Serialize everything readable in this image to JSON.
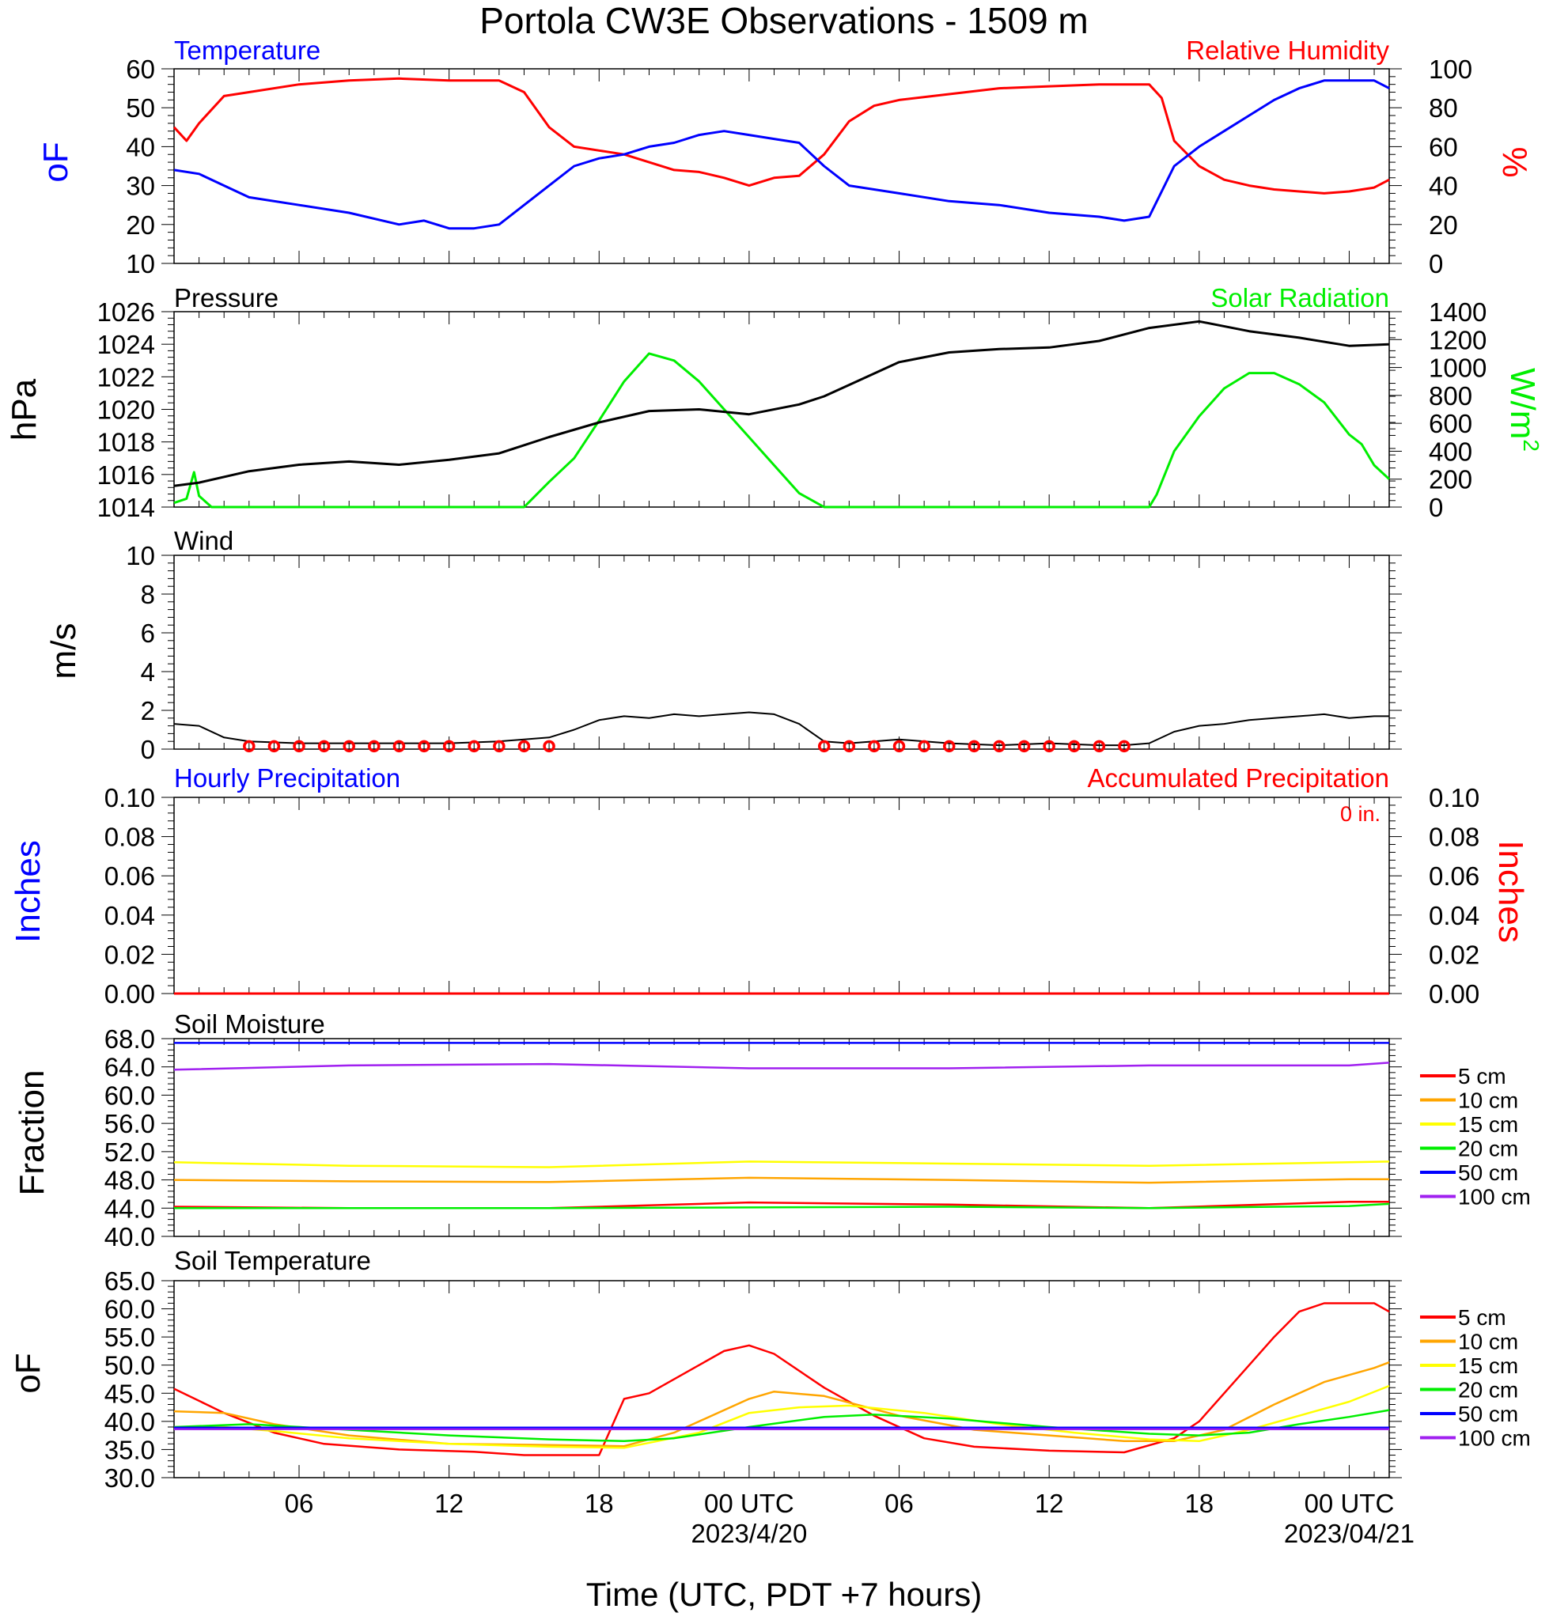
{
  "page_title": "Portola CW3E Observations - 1509 m",
  "x_axis": {
    "title": "Time (UTC, PDT +7 hours)",
    "tick_labels": [
      "06",
      "12",
      "18",
      "00 UTC",
      "06",
      "12",
      "18",
      "00 UTC"
    ],
    "tick_hours": [
      6,
      12,
      18,
      24,
      30,
      36,
      42,
      48
    ],
    "date_labels": [
      {
        "hour": 24,
        "text": "2023/4/20"
      },
      {
        "hour": 48,
        "text": "2023/04/21"
      }
    ],
    "range_hours": [
      1,
      49.6
    ]
  },
  "colors": {
    "temperature": "#0000ff",
    "humidity": "#ff0000",
    "pressure": "#000000",
    "solar": "#00ee00",
    "wind": "#000000",
    "wind_barb": "#ff0000",
    "precip_hourly": "#0000ff",
    "precip_accum": "#ff0000",
    "depth_5cm": "#ff0000",
    "depth_10cm": "#ffa500",
    "depth_15cm": "#ffff00",
    "depth_20cm": "#00ee00",
    "depth_50cm": "#0000ff",
    "depth_100cm": "#a020f0"
  },
  "panels": {
    "temp_rh": {
      "left_title": "Temperature",
      "right_title": "Relative Humidity",
      "left_unit": "oF",
      "right_unit": "%",
      "left_ticks": [
        "10",
        "20",
        "30",
        "40",
        "50",
        "60"
      ],
      "right_ticks": [
        "0",
        "20",
        "40",
        "60",
        "80",
        "100"
      ]
    },
    "pressure_solar": {
      "left_title": "Pressure",
      "right_title": "Solar Radiation",
      "left_unit": "hPa",
      "right_unit": "W/m",
      "right_unit_sup": "2",
      "left_ticks": [
        "1014",
        "1016",
        "1018",
        "1020",
        "1022",
        "1024",
        "1026"
      ],
      "right_ticks": [
        "0",
        "200",
        "400",
        "600",
        "800",
        "1000",
        "1200",
        "1400"
      ]
    },
    "wind": {
      "title": "Wind",
      "unit": "m/s",
      "ticks": [
        "0",
        "2",
        "4",
        "6",
        "8",
        "10"
      ]
    },
    "precip": {
      "left_title": "Hourly Precipitation",
      "right_title": "Accumulated Precipitation",
      "accum_label": "0 in.",
      "left_unit": "Inches",
      "right_unit": "Inches",
      "left_ticks": [
        "0.00",
        "0.02",
        "0.04",
        "0.06",
        "0.08",
        "0.10"
      ],
      "right_ticks": [
        "0.00",
        "0.02",
        "0.04",
        "0.06",
        "0.08",
        "0.10"
      ]
    },
    "soil_moisture": {
      "title": "Soil Moisture",
      "unit": "Fraction",
      "ticks": [
        "40.0",
        "44.0",
        "48.0",
        "52.0",
        "56.0",
        "60.0",
        "64.0",
        "68.0"
      ],
      "legend": [
        "5 cm",
        "10 cm",
        "15 cm",
        "20 cm",
        "50 cm",
        "100 cm"
      ]
    },
    "soil_temp": {
      "title": "Soil Temperature",
      "unit": "oF",
      "ticks": [
        "30.0",
        "35.0",
        "40.0",
        "45.0",
        "50.0",
        "55.0",
        "60.0",
        "65.0"
      ],
      "legend": [
        "5 cm",
        "10 cm",
        "15 cm",
        "20 cm",
        "50 cm",
        "100 cm"
      ]
    }
  },
  "chart_data": [
    {
      "type": "line",
      "x_units": "hours since 2023-04-19 00 UTC",
      "left_ylim": [
        10,
        60
      ],
      "right_ylim": [
        0,
        100
      ],
      "series": [
        {
          "name": "Temperature",
          "axis": "left",
          "x": [
            1,
            2,
            3,
            4,
            6,
            8,
            10,
            11,
            12,
            13,
            14,
            15,
            16,
            17,
            18,
            19,
            20,
            21,
            22,
            23,
            24,
            25,
            26,
            27,
            28,
            29,
            30,
            32,
            34,
            36,
            38,
            39,
            40,
            41,
            42,
            43,
            44,
            45,
            46,
            47,
            48,
            49,
            49.6
          ],
          "y": [
            34,
            33,
            30,
            27,
            25,
            23,
            20,
            21,
            19,
            19,
            20,
            25,
            30,
            35,
            37,
            38,
            40,
            41,
            43,
            44,
            43,
            42,
            41,
            35,
            30,
            29,
            28,
            26,
            25,
            23,
            22,
            21,
            22,
            35,
            40,
            44,
            48,
            52,
            55,
            57,
            57,
            57,
            55
          ]
        },
        {
          "name": "Relative Humidity",
          "axis": "right",
          "x": [
            1,
            1.5,
            2,
            3,
            4,
            6,
            8,
            10,
            12,
            14,
            15,
            16,
            17,
            18,
            19,
            20,
            21,
            22,
            23,
            24,
            25,
            26,
            27,
            28,
            29,
            30,
            32,
            34,
            36,
            38,
            39,
            40,
            40.5,
            41,
            42,
            43,
            44,
            45,
            46,
            47,
            48,
            49,
            49.6
          ],
          "y": [
            70,
            63,
            72,
            86,
            88,
            92,
            94,
            95,
            94,
            94,
            88,
            70,
            60,
            58,
            56,
            52,
            48,
            47,
            44,
            40,
            44,
            45,
            56,
            73,
            81,
            84,
            87,
            90,
            91,
            92,
            92,
            92,
            85,
            63,
            50,
            43,
            40,
            38,
            37,
            36,
            37,
            39,
            43
          ]
        }
      ]
    },
    {
      "type": "line",
      "left_ylim": [
        1014,
        1026
      ],
      "right_ylim": [
        0,
        1400
      ],
      "series": [
        {
          "name": "Pressure",
          "axis": "left",
          "x": [
            1,
            2,
            4,
            6,
            8,
            10,
            12,
            14,
            15,
            16,
            18,
            20,
            22,
            24,
            26,
            27,
            28,
            30,
            32,
            34,
            36,
            38,
            40,
            42,
            44,
            46,
            48,
            49.6
          ],
          "y": [
            1015.3,
            1015.5,
            1016.2,
            1016.6,
            1016.8,
            1016.6,
            1016.9,
            1017.3,
            1017.8,
            1018.3,
            1019.2,
            1019.9,
            1020.0,
            1019.7,
            1020.3,
            1020.8,
            1021.5,
            1022.9,
            1023.5,
            1023.7,
            1023.8,
            1024.2,
            1025.0,
            1025.4,
            1024.8,
            1024.4,
            1023.9,
            1024.0
          ]
        },
        {
          "name": "Solar Radiation",
          "axis": "right",
          "x": [
            1,
            1.5,
            1.8,
            2,
            2.5,
            3,
            15,
            16,
            17,
            18,
            19,
            20,
            21,
            22,
            23,
            24,
            25,
            26,
            27,
            28,
            29,
            30,
            36,
            40,
            40.3,
            41,
            42,
            43,
            44,
            45,
            46,
            47,
            48,
            48.5,
            49,
            49.6
          ],
          "y": [
            30,
            60,
            250,
            80,
            0,
            0,
            0,
            180,
            350,
            620,
            900,
            1100,
            1050,
            900,
            700,
            500,
            300,
            100,
            0,
            0,
            0,
            0,
            0,
            0,
            90,
            400,
            650,
            850,
            960,
            960,
            880,
            750,
            520,
            450,
            300,
            200
          ]
        }
      ]
    },
    {
      "type": "line",
      "ylim": [
        0,
        10
      ],
      "series": [
        {
          "name": "Wind",
          "x": [
            1,
            2,
            3,
            4,
            6,
            8,
            10,
            12,
            14,
            15,
            16,
            17,
            18,
            19,
            20,
            21,
            22,
            23,
            24,
            25,
            26,
            27,
            28,
            29,
            30,
            32,
            34,
            36,
            38,
            39,
            40,
            41,
            42,
            43,
            44,
            45,
            46,
            47,
            48,
            49,
            49.6
          ],
          "y": [
            1.3,
            1.2,
            0.6,
            0.4,
            0.3,
            0.3,
            0.3,
            0.3,
            0.4,
            0.5,
            0.6,
            1.0,
            1.5,
            1.7,
            1.6,
            1.8,
            1.7,
            1.8,
            1.9,
            1.8,
            1.3,
            0.4,
            0.3,
            0.4,
            0.5,
            0.3,
            0.2,
            0.3,
            0.2,
            0.2,
            0.3,
            0.9,
            1.2,
            1.3,
            1.5,
            1.6,
            1.7,
            1.8,
            1.6,
            1.7,
            1.7
          ]
        }
      ],
      "calm_hours": [
        4,
        5,
        6,
        7,
        8,
        9,
        10,
        11,
        12,
        13,
        14,
        15,
        16,
        27,
        28,
        29,
        30,
        31,
        32,
        33,
        34,
        35,
        36,
        37,
        38,
        39
      ]
    },
    {
      "type": "line",
      "left_ylim": [
        0,
        0.1
      ],
      "right_ylim": [
        0,
        0.1
      ],
      "series": [
        {
          "name": "Hourly Precipitation",
          "axis": "left",
          "x": [
            1,
            49.6
          ],
          "y": [
            0,
            0
          ]
        },
        {
          "name": "Accumulated Precipitation",
          "axis": "right",
          "x": [
            1,
            49.6
          ],
          "y": [
            0,
            0
          ]
        }
      ]
    },
    {
      "type": "line",
      "ylim": [
        40,
        68
      ],
      "series": [
        {
          "name": "5 cm",
          "x": [
            1,
            8,
            16,
            24,
            32,
            40,
            48,
            49.6
          ],
          "y": [
            44.2,
            44.0,
            44.0,
            44.8,
            44.5,
            44.0,
            44.9,
            44.9
          ]
        },
        {
          "name": "10 cm",
          "x": [
            1,
            8,
            16,
            24,
            32,
            40,
            48,
            49.6
          ],
          "y": [
            48.0,
            47.8,
            47.7,
            48.3,
            48.0,
            47.6,
            48.1,
            48.1
          ]
        },
        {
          "name": "15 cm",
          "x": [
            1,
            8,
            16,
            24,
            32,
            40,
            48,
            49.6
          ],
          "y": [
            50.5,
            50.0,
            49.8,
            50.6,
            50.3,
            50.0,
            50.5,
            50.6
          ]
        },
        {
          "name": "20 cm",
          "x": [
            1,
            8,
            16,
            24,
            32,
            40,
            48,
            49.6
          ],
          "y": [
            44.0,
            44.0,
            44.0,
            44.1,
            44.2,
            44.0,
            44.3,
            44.6
          ]
        },
        {
          "name": "50 cm",
          "x": [
            1,
            49.6
          ],
          "y": [
            67.4,
            67.4
          ]
        },
        {
          "name": "100 cm",
          "x": [
            1,
            8,
            16,
            24,
            32,
            40,
            48,
            49.6
          ],
          "y": [
            63.6,
            64.2,
            64.4,
            63.8,
            63.8,
            64.2,
            64.2,
            64.6
          ]
        }
      ]
    },
    {
      "type": "line",
      "ylim": [
        30,
        65
      ],
      "series": [
        {
          "name": "5 cm",
          "x": [
            1,
            3,
            5,
            7,
            10,
            13,
            15,
            18,
            19,
            20,
            22,
            23,
            24,
            25,
            27,
            29,
            31,
            33,
            36,
            39,
            41,
            42,
            44,
            45,
            46,
            47,
            48,
            49,
            49.6
          ],
          "y": [
            45.8,
            41.5,
            38.0,
            36.0,
            35.0,
            34.6,
            34.0,
            34.0,
            44,
            45,
            50,
            52.5,
            53.5,
            52,
            46,
            41,
            37,
            35.5,
            34.8,
            34.5,
            37,
            40,
            50,
            55,
            59.5,
            61,
            61,
            61,
            59.5
          ]
        },
        {
          "name": "10 cm",
          "x": [
            1,
            3,
            5,
            8,
            12,
            16,
            19,
            21,
            23,
            24,
            25,
            27,
            30,
            33,
            36,
            39,
            41,
            43,
            45,
            47,
            49,
            49.6
          ],
          "y": [
            41.8,
            41.5,
            39.5,
            37.5,
            36.0,
            35.8,
            35.6,
            38,
            42,
            44,
            45.3,
            44.5,
            41,
            38.5,
            37.5,
            36.5,
            36.5,
            38.5,
            43,
            47,
            49.5,
            50.5
          ]
        },
        {
          "name": "15 cm",
          "x": [
            1,
            3,
            5,
            8,
            12,
            16,
            19,
            22,
            24,
            26,
            28,
            31,
            34,
            37,
            40,
            42,
            44,
            46,
            48,
            49.6
          ],
          "y": [
            39.0,
            39.0,
            38.3,
            37.0,
            36.0,
            35.5,
            35.3,
            38,
            41.5,
            42.5,
            42.8,
            41.5,
            39.5,
            38,
            36.8,
            36.5,
            38.5,
            41,
            43.5,
            46.3
          ]
        },
        {
          "name": "20 cm",
          "x": [
            1,
            4,
            8,
            12,
            16,
            19,
            21,
            24,
            27,
            29,
            32,
            36,
            40,
            42,
            44,
            46,
            48,
            49.6
          ],
          "y": [
            39.0,
            39.5,
            38.5,
            37.5,
            36.8,
            36.5,
            37.0,
            39.0,
            40.8,
            41.2,
            40.5,
            39.0,
            37.8,
            37.5,
            38.0,
            39.5,
            40.8,
            42.0
          ]
        },
        {
          "name": "50 cm",
          "x": [
            1,
            49.6
          ],
          "y": [
            38.9,
            38.9
          ]
        },
        {
          "name": "100 cm",
          "x": [
            1,
            49.6
          ],
          "y": [
            38.6,
            38.6
          ]
        }
      ]
    }
  ]
}
